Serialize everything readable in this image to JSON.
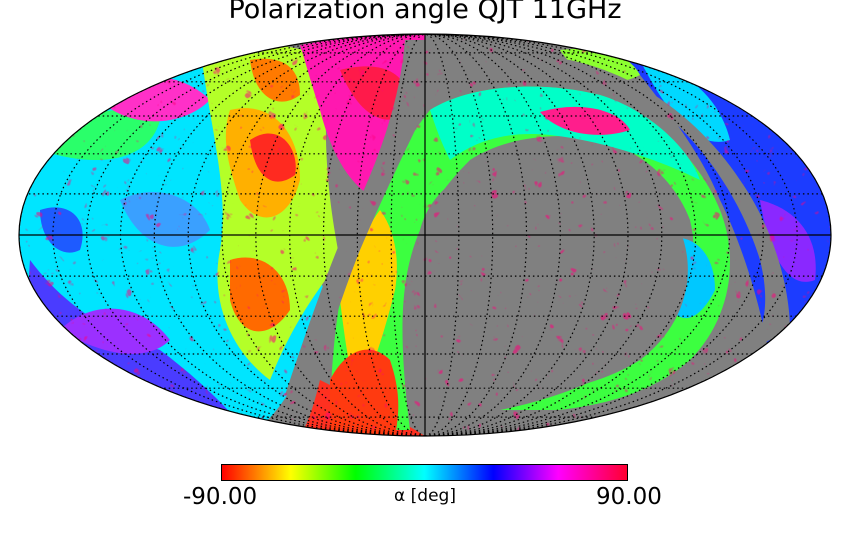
{
  "title": "Polarization angle QJT 11GHz",
  "colorbar": {
    "min_label": "-90.00",
    "max_label": "90.00",
    "unit_label": "α [deg]",
    "min": -90,
    "max": 90,
    "colormap": "hsv"
  },
  "projection": "mollweide",
  "colors": {
    "masked": "#808080",
    "graticule": "#000000",
    "background": "#ffffff"
  }
}
